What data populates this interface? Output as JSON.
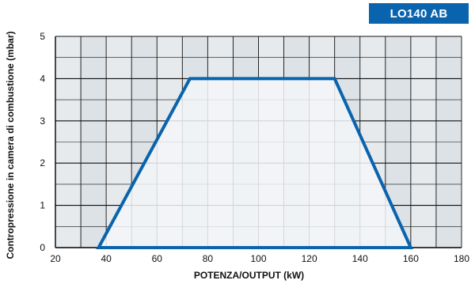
{
  "badge": "LO140 AB",
  "chart_data": {
    "type": "area",
    "title": "LO140 AB",
    "xlabel": "POTENZA/OUTPUT (kW)",
    "ylabel": "Contropressione in camera di combustione (mbar)",
    "xlim": [
      20,
      180
    ],
    "ylim": [
      0,
      5
    ],
    "x_ticks": [
      20,
      40,
      60,
      80,
      100,
      120,
      140,
      160,
      180
    ],
    "y_ticks": [
      0,
      1,
      2,
      3,
      4,
      5
    ],
    "grid": true,
    "series": [
      {
        "x": [
          37,
          73,
          130,
          160,
          37
        ],
        "y": [
          0,
          4,
          4,
          0,
          0
        ]
      }
    ],
    "colors": {
      "line": "#0a63ad",
      "fill": "#f3f6f8",
      "grid_cell": "#e6eaed",
      "grid_line": "#111111"
    }
  }
}
